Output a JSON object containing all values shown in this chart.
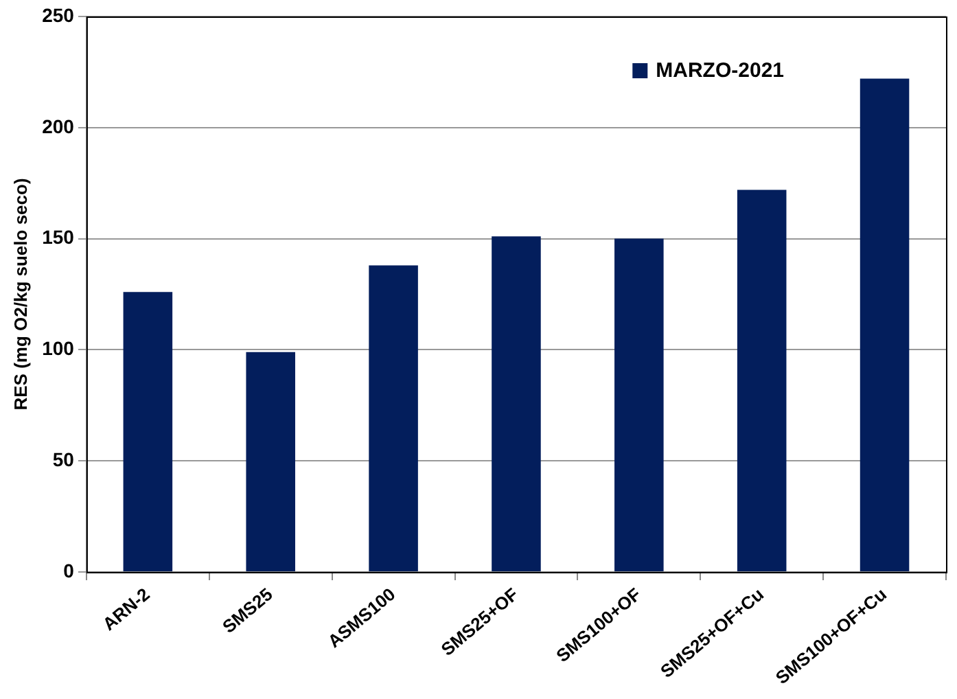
{
  "chart_data": {
    "type": "bar",
    "ylabel": "RES (mg O2/kg suelo seco)",
    "categories": [
      "ARN-2",
      "SMS25",
      "ASMS100",
      "SMS25+OF",
      "SMS100+OF",
      "SMS25+OF+Cu",
      "SMS100+OF+Cu"
    ],
    "series": [
      {
        "name": "MARZO-2021",
        "color": "#031e5c",
        "values": [
          126,
          99,
          138,
          151,
          150,
          172,
          222
        ]
      }
    ],
    "ylim": [
      0,
      250
    ],
    "yticks": [
      0,
      50,
      100,
      150,
      200,
      250
    ],
    "grid": "y",
    "legend": "top right"
  }
}
